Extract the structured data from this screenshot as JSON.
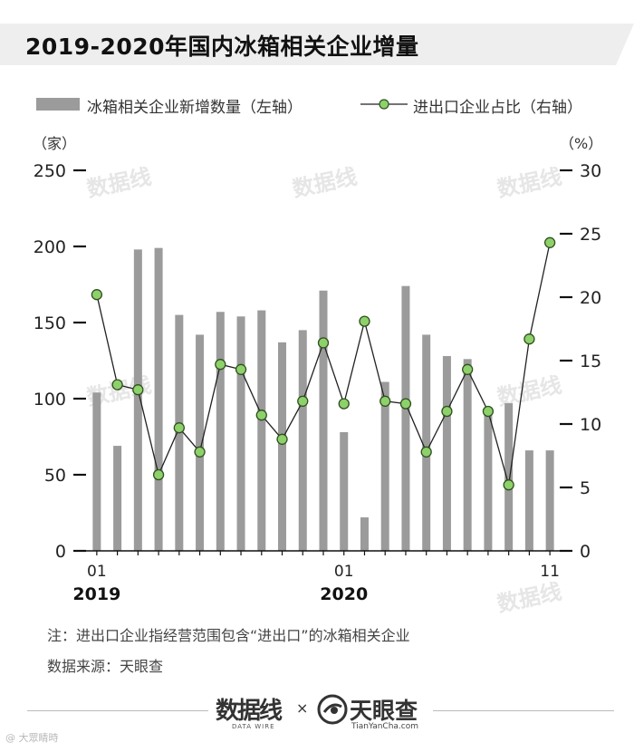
{
  "title": "2019-2020年国内冰箱相关企业增量",
  "legend": {
    "bar_label": "冰箱相关企业新增数量（左轴）",
    "line_label": "进出口企业占比（右轴）"
  },
  "chart_data": {
    "type": "bar+line",
    "title": "2019-2020年国内冰箱相关企业增量",
    "x_tick_labels": [
      {
        "index": 0,
        "label": "01",
        "year": "2019"
      },
      {
        "index": 12,
        "label": "01",
        "year": "2020"
      },
      {
        "index": 22,
        "label": "11",
        "year": ""
      }
    ],
    "months": [
      "2019-01",
      "2019-02",
      "2019-03",
      "2019-04",
      "2019-05",
      "2019-06",
      "2019-07",
      "2019-08",
      "2019-09",
      "2019-10",
      "2019-11",
      "2019-12",
      "2020-01",
      "2020-02",
      "2020-03",
      "2020-04",
      "2020-05",
      "2020-06",
      "2020-07",
      "2020-08",
      "2020-09",
      "2020-10",
      "2020-11"
    ],
    "y_left": {
      "unit": "（家）",
      "ticks": [
        0,
        50,
        100,
        150,
        200,
        250
      ],
      "range": [
        0,
        250
      ]
    },
    "y_right": {
      "unit": "（%）",
      "ticks": [
        0,
        5,
        10,
        15,
        20,
        25,
        30
      ],
      "range": [
        0,
        30
      ]
    },
    "series": [
      {
        "name": "冰箱相关企业新增数量（左轴）",
        "type": "bar",
        "axis": "left",
        "values": [
          104,
          69,
          198,
          199,
          155,
          142,
          157,
          154,
          158,
          137,
          145,
          171,
          78,
          22,
          111,
          174,
          142,
          128,
          126,
          94,
          97,
          66,
          66
        ]
      },
      {
        "name": "进出口企业占比（右轴）",
        "type": "line",
        "axis": "right",
        "values": [
          20.2,
          13.1,
          12.7,
          6.0,
          9.7,
          7.8,
          14.7,
          14.3,
          10.7,
          8.8,
          11.8,
          16.4,
          11.6,
          18.1,
          11.8,
          11.6,
          7.8,
          11.0,
          14.3,
          11.0,
          5.2,
          16.7,
          24.3
        ]
      }
    ],
    "colors": {
      "bar": "#9b9b9b",
      "line": "#222222",
      "marker_fill": "#8ed16b",
      "marker_stroke": "#2f4f1f"
    }
  },
  "note": "注：进出口企业指经营范围包含“进出口”的冰箱相关企业",
  "source": "数据来源：天眼查",
  "footer": {
    "brand1": "数据线",
    "brand1_sub": "DATA WIRE",
    "times": "×",
    "brand2": "天眼查",
    "brand2_sub": "TianYanCha.com",
    "watermark": "@ 大眾睛時",
    "chart_watermark": "数据线"
  }
}
